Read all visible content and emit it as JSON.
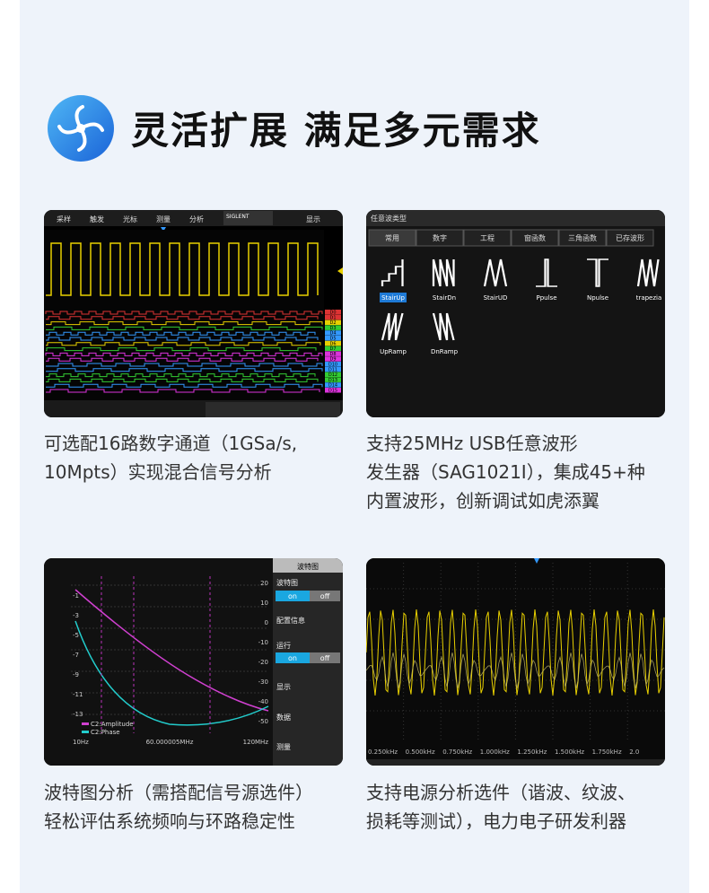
{
  "header": {
    "title": "灵活扩展 满足多元需求"
  },
  "cards": [
    {
      "caption": [
        "可选配16路数字通道（1GSa/s,",
        "10Mpts）实现混合信号分析"
      ],
      "screen": {
        "menu": [
          "采样",
          "触发",
          "光标",
          "测量",
          "分析"
        ],
        "brand": "SIGLENT",
        "display": "显示",
        "channels": [
          "D0",
          "D1",
          "D2",
          "D3",
          "D4",
          "D5",
          "D6",
          "D7",
          "D8",
          "D9",
          "D10",
          "D11",
          "D12",
          "D13",
          "D14",
          "D15"
        ]
      }
    },
    {
      "caption": [
        "支持25MHz USB任意波形",
        "发生器（SAG1021I），集成45+种",
        "内置波形，创新调试如虎添翼"
      ],
      "screen": {
        "title": "任意波类型",
        "tabs": [
          "常用",
          "数字",
          "工程",
          "窗函数",
          "三角函数",
          "已存波形"
        ],
        "waves": [
          "StairUp",
          "StairDn",
          "StairUD",
          "Ppulse",
          "Npulse",
          "trapezia",
          "UpRamp",
          "DnRamp"
        ]
      }
    },
    {
      "caption": [
        "波特图分析（需搭配信号源选件）",
        "轻松评估系统频响与环路稳定性"
      ],
      "screen": {
        "title": "波特图",
        "menu": [
          "波特图",
          "on",
          "off",
          "配置信息",
          "运行",
          "on",
          "off",
          "显示",
          "数据",
          "测量"
        ],
        "legend": [
          "C2:Amplitude",
          "C2:Phase"
        ],
        "x_labels": [
          "10Hz",
          "60.000005MHz",
          "120MHz"
        ],
        "left_labels": [
          "-1",
          "-3",
          "-5",
          "-7",
          "-9",
          "-11",
          "-13"
        ],
        "right_labels": [
          "20",
          "10",
          "0",
          "-10",
          "-20",
          "-30",
          "-40",
          "-50"
        ]
      }
    },
    {
      "caption": [
        "支持电源分析选件（谐波、纹波、",
        "损耗等测试），电力电子研发利器"
      ],
      "screen": {
        "x_labels": [
          "0.250kHz",
          "0.500kHz",
          "0.750kHz",
          "1.000kHz",
          "1.250kHz",
          "1.500kHz",
          "1.750kHz",
          "2.0"
        ]
      }
    }
  ]
}
